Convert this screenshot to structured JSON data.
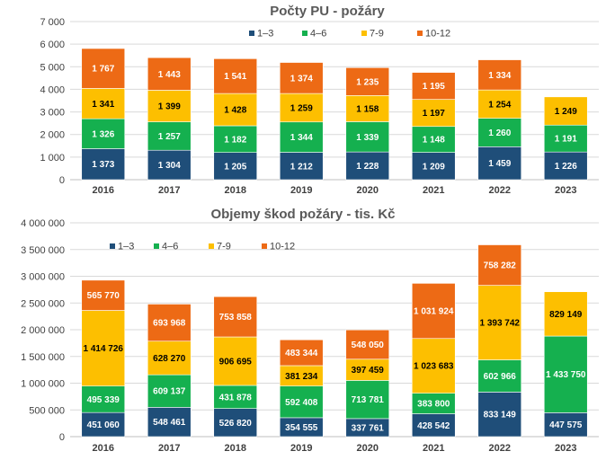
{
  "colors": {
    "c1": "#1f4e79",
    "c2": "#15b04f",
    "c3": "#fdbf00",
    "c4": "#ed6a15"
  },
  "chart_data": [
    {
      "type": "bar",
      "stacked": true,
      "title": "Počty PU - požáry",
      "categories": [
        "2016",
        "2017",
        "2018",
        "2019",
        "2020",
        "2021",
        "2022",
        "2023"
      ],
      "ylim": [
        0,
        7000
      ],
      "yticks": [
        0,
        1000,
        2000,
        3000,
        4000,
        5000,
        6000,
        7000
      ],
      "ytick_labels": [
        "0",
        "1 000",
        "2 000",
        "3 000",
        "4 000",
        "5 000",
        "6 000",
        "7 000"
      ],
      "legend_position": "top",
      "series": [
        {
          "name": "1–3",
          "color_key": "c1",
          "values": [
            1373,
            1304,
            1205,
            1212,
            1228,
            1209,
            1459,
            1226
          ],
          "labels": [
            "1 373",
            "1 304",
            "1 205",
            "1 212",
            "1 228",
            "1 209",
            "1 459",
            "1 226"
          ]
        },
        {
          "name": "4–6",
          "color_key": "c2",
          "values": [
            1326,
            1257,
            1182,
            1344,
            1339,
            1148,
            1260,
            1191
          ],
          "labels": [
            "1 326",
            "1 257",
            "1 182",
            "1 344",
            "1 339",
            "1 148",
            "1 260",
            "1 191"
          ]
        },
        {
          "name": "7-9",
          "color_key": "c3",
          "values": [
            1341,
            1399,
            1428,
            1259,
            1158,
            1197,
            1254,
            1249
          ],
          "labels": [
            "1 341",
            "1 399",
            "1 428",
            "1 259",
            "1 158",
            "1 197",
            "1 254",
            "1 249"
          ]
        },
        {
          "name": "10-12",
          "color_key": "c4",
          "values": [
            1767,
            1443,
            1541,
            1374,
            1235,
            1195,
            1334,
            null
          ],
          "labels": [
            "1 767",
            "1 443",
            "1 541",
            "1 374",
            "1 235",
            "1 195",
            "1 334",
            null
          ]
        }
      ]
    },
    {
      "type": "bar",
      "stacked": true,
      "title": "Objemy škod požáry - tis. Kč",
      "categories": [
        "2016",
        "2017",
        "2018",
        "2019",
        "2020",
        "2021",
        "2022",
        "2023"
      ],
      "ylim": [
        0,
        4000000
      ],
      "yticks": [
        0,
        500000,
        1000000,
        1500000,
        2000000,
        2500000,
        3000000,
        3500000,
        4000000
      ],
      "ytick_labels": [
        "0",
        "500 000",
        "1 000 000",
        "1 500 000",
        "2 000 000",
        "2 500 000",
        "3 000 000",
        "3 500 000",
        "4 000 000"
      ],
      "legend_position": "top-left",
      "series": [
        {
          "name": "1–3",
          "color_key": "c1",
          "values": [
            451060,
            548461,
            526820,
            354555,
            337761,
            428542,
            833149,
            447575
          ],
          "labels": [
            "451 060",
            "548 461",
            "526 820",
            "354 555",
            "337 761",
            "428 542",
            "833 149",
            "447 575"
          ]
        },
        {
          "name": "4–6",
          "color_key": "c2",
          "values": [
            495339,
            609137,
            431878,
            592408,
            713781,
            383800,
            602966,
            1433750
          ],
          "labels": [
            "495 339",
            "609 137",
            "431 878",
            "592 408",
            "713 781",
            "383 800",
            "602 966",
            "1 433 750"
          ]
        },
        {
          "name": "7-9",
          "color_key": "c3",
          "values": [
            1414726,
            628270,
            906695,
            381234,
            397459,
            1023683,
            1393742,
            829149
          ],
          "labels": [
            "1 414 726",
            "628 270",
            "906 695",
            "381 234",
            "397 459",
            "1 023 683",
            "1 393 742",
            "829 149"
          ]
        },
        {
          "name": "10-12",
          "color_key": "c4",
          "values": [
            565770,
            693968,
            753858,
            483344,
            548050,
            1031924,
            758282,
            null
          ],
          "labels": [
            "565 770",
            "693 968",
            "753 858",
            "483 344",
            "548 050",
            "1 031 924",
            "758 282",
            null
          ]
        }
      ]
    }
  ]
}
